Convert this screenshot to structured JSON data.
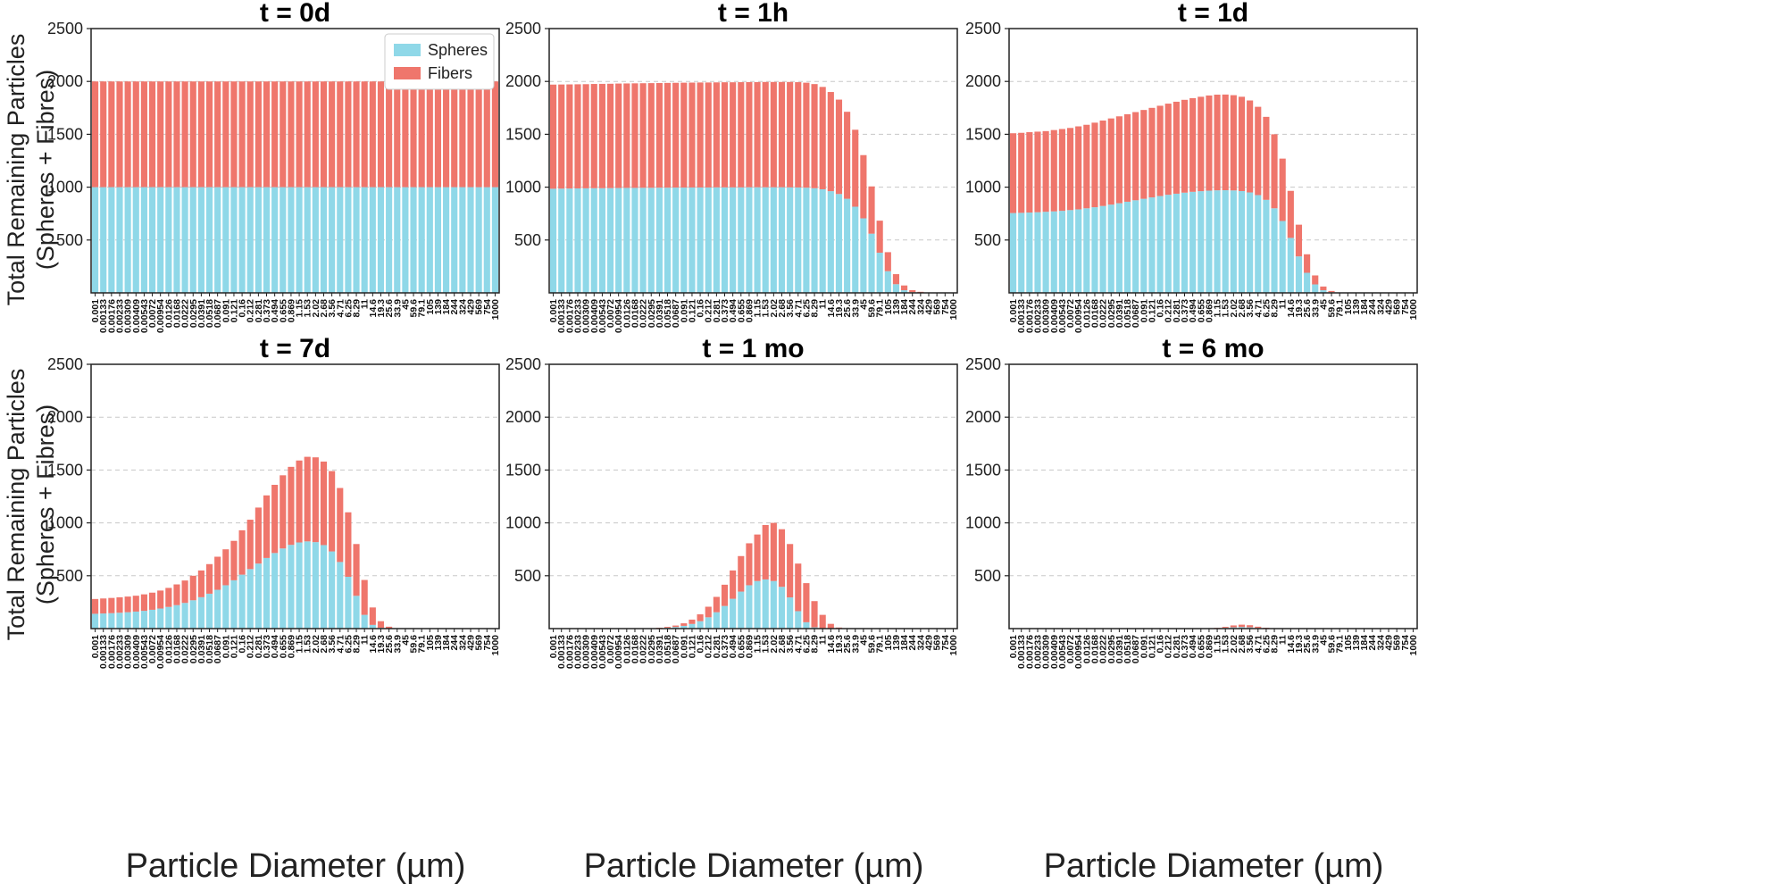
{
  "figure": {
    "ylabel_line1": "Total Remaining Particles",
    "ylabel_line2": "(Spheres + Fibres)",
    "xlabel": "Particle Diameter (µm)"
  },
  "colors": {
    "spheres": "#8fd8e8",
    "fibers": "#ef766c"
  },
  "chart_data": [
    {
      "type": "bar",
      "stacked": true,
      "title": "t = 0d",
      "ylim": [
        0,
        2500
      ],
      "yticks": [
        500,
        1000,
        1500,
        2000,
        2500
      ],
      "grid": true,
      "legend": {
        "position": "top-right",
        "entries": [
          "Spheres",
          "Fibers"
        ]
      },
      "categories": [
        "0.001",
        "0.00133",
        "0.00176",
        "0.00233",
        "0.00309",
        "0.00409",
        "0.00543",
        "0.0072",
        "0.00954",
        "0.0126",
        "0.0168",
        "0.0222",
        "0.0295",
        "0.0391",
        "0.0518",
        "0.0687",
        "0.091",
        "0.121",
        "0.16",
        "0.212",
        "0.281",
        "0.373",
        "0.494",
        "0.655",
        "0.869",
        "1.15",
        "1.53",
        "2.02",
        "2.68",
        "3.56",
        "4.71",
        "6.25",
        "8.29",
        "11",
        "14.6",
        "19.3",
        "25.6",
        "33.9",
        "45",
        "59.6",
        "79.1",
        "105",
        "139",
        "184",
        "244",
        "324",
        "429",
        "569",
        "754",
        "1000"
      ],
      "series": [
        {
          "name": "Spheres",
          "values": [
            1000,
            1000,
            1000,
            1000,
            1000,
            1000,
            1000,
            1000,
            1000,
            1000,
            1000,
            1000,
            1000,
            1000,
            1000,
            1000,
            1000,
            1000,
            1000,
            1000,
            1000,
            1000,
            1000,
            1000,
            1000,
            1000,
            1000,
            1000,
            1000,
            1000,
            1000,
            1000,
            1000,
            1000,
            1000,
            1000,
            1000,
            1000,
            1000,
            1000,
            1000,
            1000,
            1000,
            1000,
            1000,
            1000,
            1000,
            1000,
            1000,
            1000
          ]
        },
        {
          "name": "Fibers",
          "values": [
            1000,
            1000,
            1000,
            1000,
            1000,
            1000,
            1000,
            1000,
            1000,
            1000,
            1000,
            1000,
            1000,
            1000,
            1000,
            1000,
            1000,
            1000,
            1000,
            1000,
            1000,
            1000,
            1000,
            1000,
            1000,
            1000,
            1000,
            1000,
            1000,
            1000,
            1000,
            1000,
            1000,
            1000,
            1000,
            1000,
            1000,
            1000,
            1000,
            1000,
            1000,
            1000,
            1000,
            1000,
            1000,
            1000,
            1000,
            1000,
            1000,
            1000
          ]
        }
      ]
    },
    {
      "type": "bar",
      "stacked": true,
      "title": "t = 1h",
      "ylim": [
        0,
        2500
      ],
      "yticks": [
        500,
        1000,
        1500,
        2000,
        2500
      ],
      "grid": true,
      "categories": [
        "0.001",
        "0.00133",
        "0.00176",
        "0.00233",
        "0.00309",
        "0.00409",
        "0.00543",
        "0.0072",
        "0.00954",
        "0.0126",
        "0.0168",
        "0.0222",
        "0.0295",
        "0.0391",
        "0.0518",
        "0.0687",
        "0.091",
        "0.121",
        "0.16",
        "0.212",
        "0.281",
        "0.373",
        "0.494",
        "0.655",
        "0.869",
        "1.15",
        "1.53",
        "2.02",
        "2.68",
        "3.56",
        "4.71",
        "6.25",
        "8.29",
        "11",
        "14.6",
        "19.3",
        "25.6",
        "33.9",
        "45",
        "59.6",
        "79.1",
        "105",
        "139",
        "184",
        "244",
        "324",
        "429",
        "569",
        "754",
        "1000"
      ],
      "series": [
        {
          "name": "Spheres",
          "values": [
            985,
            986,
            987,
            988,
            989,
            990,
            990,
            991,
            992,
            993,
            993,
            994,
            994,
            995,
            995,
            996,
            996,
            997,
            997,
            997,
            998,
            998,
            998,
            998,
            999,
            999,
            999,
            999,
            999,
            998,
            997,
            995,
            990,
            980,
            962,
            935,
            890,
            815,
            705,
            560,
            380,
            205,
            82,
            25,
            6,
            2,
            0,
            0,
            0,
            0
          ]
        },
        {
          "name": "Fibers",
          "values": [
            985,
            985,
            985,
            985,
            985,
            986,
            987,
            987,
            988,
            988,
            989,
            989,
            990,
            990,
            991,
            991,
            992,
            992,
            993,
            993,
            993,
            994,
            994,
            995,
            995,
            995,
            996,
            996,
            996,
            997,
            996,
            993,
            985,
            968,
            938,
            893,
            823,
            728,
            598,
            447,
            303,
            180,
            95,
            45,
            20,
            8,
            3,
            1,
            0,
            0
          ]
        }
      ]
    },
    {
      "type": "bar",
      "stacked": true,
      "title": "t = 1d",
      "ylim": [
        0,
        2500
      ],
      "yticks": [
        500,
        1000,
        1500,
        2000,
        2500
      ],
      "grid": true,
      "categories": [
        "0.001",
        "0.00133",
        "0.00176",
        "0.00233",
        "0.00309",
        "0.00409",
        "0.00543",
        "0.0072",
        "0.00954",
        "0.0126",
        "0.0168",
        "0.0222",
        "0.0295",
        "0.0391",
        "0.0518",
        "0.0687",
        "0.091",
        "0.121",
        "0.16",
        "0.212",
        "0.281",
        "0.373",
        "0.494",
        "0.655",
        "0.869",
        "1.15",
        "1.53",
        "2.02",
        "2.68",
        "3.56",
        "4.71",
        "6.25",
        "8.29",
        "11",
        "14.6",
        "19.3",
        "25.6",
        "33.9",
        "45",
        "59.6",
        "79.1",
        "105",
        "139",
        "184",
        "244",
        "324",
        "429",
        "569",
        "754",
        "1000"
      ],
      "series": [
        {
          "name": "Spheres",
          "values": [
            755,
            757,
            760,
            763,
            767,
            771,
            776,
            783,
            790,
            800,
            810,
            822,
            835,
            848,
            862,
            876,
            890,
            903,
            916,
            928,
            938,
            948,
            956,
            962,
            967,
            970,
            971,
            969,
            963,
            950,
            925,
            880,
            800,
            680,
            520,
            345,
            190,
            80,
            25,
            6,
            1,
            0,
            0,
            0,
            0,
            0,
            0,
            0,
            0,
            0
          ]
        },
        {
          "name": "Fibers",
          "values": [
            755,
            757,
            760,
            762,
            763,
            769,
            774,
            777,
            785,
            790,
            800,
            808,
            815,
            822,
            828,
            834,
            840,
            847,
            854,
            862,
            870,
            878,
            886,
            893,
            900,
            905,
            905,
            901,
            892,
            870,
            835,
            785,
            700,
            590,
            445,
            300,
            175,
            85,
            35,
            12,
            3,
            1,
            0,
            0,
            0,
            0,
            0,
            0,
            0,
            0
          ]
        }
      ]
    },
    {
      "type": "bar",
      "stacked": true,
      "title": "t = 7d",
      "ylim": [
        0,
        2500
      ],
      "yticks": [
        500,
        1000,
        1500,
        2000,
        2500
      ],
      "grid": true,
      "categories": [
        "0.001",
        "0.00133",
        "0.00176",
        "0.00233",
        "0.00309",
        "0.00409",
        "0.00543",
        "0.0072",
        "0.00954",
        "0.0126",
        "0.0168",
        "0.0222",
        "0.0295",
        "0.0391",
        "0.0518",
        "0.0687",
        "0.091",
        "0.121",
        "0.16",
        "0.212",
        "0.281",
        "0.373",
        "0.494",
        "0.655",
        "0.869",
        "1.15",
        "1.53",
        "2.02",
        "2.68",
        "3.56",
        "4.71",
        "6.25",
        "8.29",
        "11",
        "14.6",
        "19.3",
        "25.6",
        "33.9",
        "45",
        "59.6",
        "79.1",
        "105",
        "139",
        "184",
        "244",
        "324",
        "429",
        "569",
        "754",
        "1000"
      ],
      "series": [
        {
          "name": "Spheres",
          "values": [
            140,
            143,
            146,
            150,
            155,
            161,
            168,
            178,
            190,
            205,
            222,
            243,
            268,
            297,
            330,
            367,
            410,
            457,
            510,
            563,
            615,
            668,
            715,
            758,
            792,
            815,
            825,
            818,
            790,
            730,
            630,
            490,
            310,
            130,
            35,
            8,
            1,
            0,
            0,
            0,
            0,
            0,
            0,
            0,
            0,
            0,
            0,
            0,
            0,
            0
          ]
        },
        {
          "name": "Fibers",
          "values": [
            140,
            142,
            144,
            146,
            148,
            150,
            156,
            162,
            170,
            180,
            196,
            212,
            232,
            253,
            280,
            313,
            340,
            373,
            420,
            467,
            530,
            592,
            645,
            692,
            738,
            775,
            800,
            802,
            790,
            760,
            700,
            610,
            490,
            330,
            165,
            62,
            17,
            3,
            0,
            0,
            0,
            0,
            0,
            0,
            0,
            0,
            0,
            0,
            0,
            0
          ]
        }
      ]
    },
    {
      "type": "bar",
      "stacked": true,
      "title": "t = 1 mo",
      "ylim": [
        0,
        2500
      ],
      "yticks": [
        500,
        1000,
        1500,
        2000,
        2500
      ],
      "grid": true,
      "categories": [
        "0.001",
        "0.00133",
        "0.00176",
        "0.00233",
        "0.00309",
        "0.00409",
        "0.00543",
        "0.0072",
        "0.00954",
        "0.0126",
        "0.0168",
        "0.0222",
        "0.0295",
        "0.0391",
        "0.0518",
        "0.0687",
        "0.091",
        "0.121",
        "0.16",
        "0.212",
        "0.281",
        "0.373",
        "0.494",
        "0.655",
        "0.869",
        "1.15",
        "1.53",
        "2.02",
        "2.68",
        "3.56",
        "4.71",
        "6.25",
        "8.29",
        "11",
        "14.6",
        "19.3",
        "25.6",
        "33.9",
        "45",
        "59.6",
        "79.1",
        "105",
        "139",
        "184",
        "244",
        "324",
        "429",
        "569",
        "754",
        "1000"
      ],
      "series": [
        {
          "name": "Spheres",
          "values": [
            0,
            0,
            0,
            0,
            0,
            0,
            0,
            0,
            0,
            0,
            0,
            1,
            2,
            4,
            8,
            15,
            26,
            44,
            70,
            107,
            155,
            214,
            282,
            350,
            410,
            450,
            465,
            450,
            395,
            295,
            165,
            60,
            12,
            2,
            0,
            0,
            0,
            0,
            0,
            0,
            0,
            0,
            0,
            0,
            0,
            0,
            0,
            0,
            0,
            0
          ]
        },
        {
          "name": "Fibers",
          "values": [
            0,
            0,
            0,
            0,
            0,
            0,
            0,
            0,
            0,
            0,
            0,
            1,
            2,
            4,
            8,
            14,
            24,
            41,
            65,
            100,
            145,
            201,
            268,
            336,
            397,
            440,
            515,
            550,
            545,
            505,
            450,
            370,
            248,
            128,
            45,
            10,
            1,
            0,
            0,
            0,
            0,
            0,
            0,
            0,
            0,
            0,
            0,
            0,
            0,
            0
          ]
        }
      ]
    },
    {
      "type": "bar",
      "stacked": true,
      "title": "t = 6 mo",
      "ylim": [
        0,
        2500
      ],
      "yticks": [
        500,
        1000,
        1500,
        2000,
        2500
      ],
      "grid": true,
      "categories": [
        "0.001",
        "0.00133",
        "0.00176",
        "0.00233",
        "0.00309",
        "0.00409",
        "0.00543",
        "0.0072",
        "0.00954",
        "0.0126",
        "0.0168",
        "0.0222",
        "0.0295",
        "0.0391",
        "0.0518",
        "0.0687",
        "0.091",
        "0.121",
        "0.16",
        "0.212",
        "0.281",
        "0.373",
        "0.494",
        "0.655",
        "0.869",
        "1.15",
        "1.53",
        "2.02",
        "2.68",
        "3.56",
        "4.71",
        "6.25",
        "8.29",
        "11",
        "14.6",
        "19.3",
        "25.6",
        "33.9",
        "45",
        "59.6",
        "79.1",
        "105",
        "139",
        "184",
        "244",
        "324",
        "429",
        "569",
        "754",
        "1000"
      ],
      "series": [
        {
          "name": "Spheres",
          "values": [
            0,
            0,
            0,
            0,
            0,
            0,
            0,
            0,
            0,
            0,
            0,
            0,
            0,
            0,
            0,
            0,
            0,
            0,
            0,
            0,
            0,
            0,
            0,
            0,
            1,
            3,
            7,
            12,
            15,
            12,
            6,
            2,
            0,
            0,
            0,
            0,
            0,
            0,
            0,
            0,
            0,
            0,
            0,
            0,
            0,
            0,
            0,
            0,
            0,
            0
          ]
        },
        {
          "name": "Fibers",
          "values": [
            0,
            0,
            0,
            0,
            0,
            0,
            0,
            0,
            0,
            0,
            0,
            0,
            0,
            0,
            0,
            0,
            0,
            0,
            0,
            0,
            0,
            0,
            0,
            0,
            1,
            4,
            9,
            18,
            22,
            20,
            12,
            6,
            2,
            0,
            0,
            0,
            0,
            0,
            0,
            0,
            0,
            0,
            0,
            0,
            0,
            0,
            0,
            0,
            0,
            0
          ]
        }
      ]
    }
  ]
}
